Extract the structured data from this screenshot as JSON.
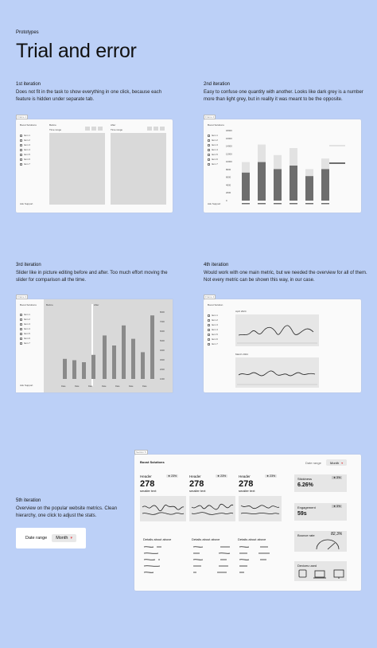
{
  "header": {
    "eyebrow": "Prototypes",
    "title": "Trial and error"
  },
  "iterations": [
    {
      "heading": "1st iteration",
      "text": "Does not fit in the task to show everything in one click, because each feature is hidden under separate tab."
    },
    {
      "heading": "2nd iteration",
      "text": "Easy to confuse one quantity with another. Looks like dark grey is a number more than light grey, but in reality it was meant to be the opposite."
    },
    {
      "heading": "3rd iteration",
      "text": "Slider like in picture editing before and after. Too much effort moving the slider for comparison all the time."
    },
    {
      "heading": "4th iteration",
      "text": "Would work with one main metric, but we needed the overview for all of them. Not every metric can be shown this way, in our case."
    },
    {
      "heading": "5th iteration",
      "text": "Overview on the popular website metrics. Clean hierarchy, one click to adjust the stats."
    }
  ],
  "proto1": {
    "frame": "Frame 1",
    "brand": "Boost Solutions",
    "items": [
      "Item 1",
      "Item 2",
      "Item 3",
      "Item 4",
      "Item 5",
      "Item 6",
      "Item 7"
    ],
    "before": "Before",
    "after": "After",
    "time_range": "Time range",
    "support": "Ask Support"
  },
  "proto2": {
    "frame": "Frame 2",
    "brand": "Boost Solutions",
    "items": [
      "Item 1",
      "Item 2",
      "Item 3",
      "Item 4",
      "Item 5",
      "Item 6",
      "Item 7"
    ],
    "yticks": [
      "18000",
      "16000",
      "14000",
      "12000",
      "10000",
      "8000",
      "6000",
      "4000",
      "2000",
      "0"
    ],
    "support": "Ask Support"
  },
  "proto3": {
    "frame": "Frame 3",
    "brand": "Boost Solutions",
    "items": [
      "Item 1",
      "Item 2",
      "Item 3",
      "Item 4",
      "Item 5",
      "Item 6",
      "Item 7"
    ],
    "before": "Before",
    "after": "After",
    "xlabels": [
      "Date",
      "Date",
      "Date",
      "Date",
      "Date",
      "Date",
      "Date"
    ],
    "yticks": [
      "8000",
      "7000",
      "6000",
      "5000",
      "4000",
      "3000",
      "2000",
      "1000"
    ],
    "support": "Ask Support"
  },
  "proto4": {
    "frame": "Frame 4",
    "brand": "Boost Solution",
    "items": [
      "Item 1",
      "Item 2",
      "Item 3",
      "Item 4",
      "Item 5",
      "Item 6",
      "Item 7"
    ],
    "chart1_title": "April 2024",
    "chart2_title": "March 2024"
  },
  "proto5": {
    "frame": "Section 5",
    "brand": "Boost Solutions",
    "date_range_label": "Date range",
    "date_range_value": "Month",
    "metrics": [
      {
        "header": "Header",
        "value": "278",
        "sub": "smaller text",
        "badge": "23%"
      },
      {
        "header": "Header",
        "value": "278",
        "sub": "smaller text",
        "badge": "23%"
      },
      {
        "header": "Header",
        "value": "278",
        "sub": "smaller text",
        "badge": "23%"
      }
    ],
    "details": [
      "Details about above",
      "Details about above",
      "Details about above"
    ],
    "side": [
      {
        "label": "Stickiness",
        "value": "6.26%",
        "badge": "3%"
      },
      {
        "label": "Engagement",
        "value": "59s",
        "badge": "3%"
      }
    ],
    "bounce": {
      "label": "Bounce rate",
      "value": "82,3%"
    },
    "devices": {
      "label": "Devices used"
    }
  },
  "standalone_control": {
    "label": "Date range",
    "value": "Month"
  }
}
